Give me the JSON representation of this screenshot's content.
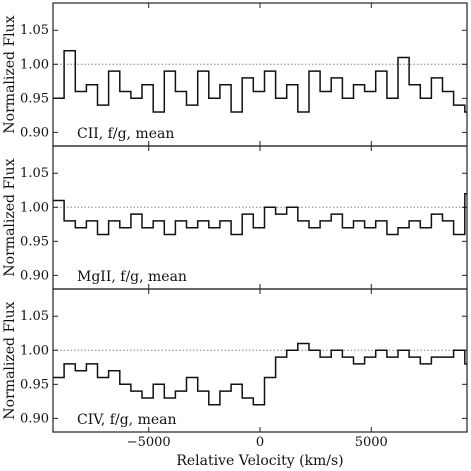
{
  "chart_data": [
    {
      "type": "line",
      "panel_label": "CII, f/g, mean",
      "ylabel": "Normalized Flux",
      "xlabel": "",
      "xlim": [
        -9300,
        9300
      ],
      "ylim": [
        0.88,
        1.09
      ],
      "yticks": [
        0.9,
        0.95,
        1.0,
        1.05
      ],
      "ytick_labels": [
        "0.90",
        "0.95",
        "1.00",
        "1.05"
      ],
      "xticks": [
        -5000,
        0,
        5000
      ],
      "xtick_labels": [],
      "reference_line": 1.0,
      "series": [
        {
          "x": [
            -9300,
            -8800,
            -8300,
            -7800,
            -7300,
            -6800,
            -6300,
            -5800,
            -5300,
            -4800,
            -4300,
            -3800,
            -3300,
            -2800,
            -2300,
            -1800,
            -1300,
            -800,
            -300,
            200,
            700,
            1200,
            1700,
            2200,
            2700,
            3200,
            3700,
            4200,
            4700,
            5200,
            5700,
            6200,
            6700,
            7200,
            7700,
            8200,
            8700,
            9200
          ],
          "y": [
            0.95,
            1.02,
            0.96,
            0.97,
            0.94,
            0.99,
            0.96,
            0.95,
            0.97,
            0.93,
            0.99,
            0.96,
            0.94,
            0.99,
            0.95,
            0.97,
            0.93,
            0.98,
            0.96,
            0.99,
            0.95,
            0.97,
            0.93,
            0.99,
            0.96,
            0.98,
            0.95,
            0.97,
            0.96,
            0.99,
            0.95,
            1.01,
            0.97,
            0.95,
            0.98,
            0.96,
            0.94,
            0.93
          ]
        }
      ]
    },
    {
      "type": "line",
      "panel_label": "MgII, f/g, mean",
      "ylabel": "Normalized Flux",
      "xlabel": "",
      "xlim": [
        -9300,
        9300
      ],
      "ylim": [
        0.88,
        1.09
      ],
      "yticks": [
        0.9,
        0.95,
        1.0,
        1.05
      ],
      "ytick_labels": [
        "0.90",
        "0.95",
        "1.00",
        "1.05"
      ],
      "xticks": [
        -5000,
        0,
        5000
      ],
      "xtick_labels": [],
      "reference_line": 1.0,
      "series": [
        {
          "x": [
            -9300,
            -8800,
            -8300,
            -7800,
            -7300,
            -6800,
            -6300,
            -5800,
            -5300,
            -4800,
            -4300,
            -3800,
            -3300,
            -2800,
            -2300,
            -1800,
            -1300,
            -800,
            -300,
            200,
            700,
            1200,
            1700,
            2200,
            2700,
            3200,
            3700,
            4200,
            4700,
            5200,
            5700,
            6200,
            6700,
            7200,
            7700,
            8200,
            8700,
            9200
          ],
          "y": [
            1.01,
            0.98,
            0.97,
            0.98,
            0.96,
            0.98,
            0.97,
            0.99,
            0.97,
            0.98,
            0.96,
            0.98,
            0.97,
            0.98,
            0.97,
            0.98,
            0.96,
            0.99,
            0.97,
            1.0,
            0.99,
            1.0,
            0.98,
            0.97,
            0.98,
            0.99,
            0.97,
            0.98,
            0.97,
            0.98,
            0.96,
            0.97,
            0.98,
            0.97,
            0.99,
            0.98,
            0.96,
            1.02
          ]
        }
      ]
    },
    {
      "type": "line",
      "panel_label": "CIV, f/g, mean",
      "ylabel": "Normalized Flux",
      "xlabel": "Relative Velocity (km/s)",
      "xlim": [
        -9300,
        9300
      ],
      "ylim": [
        0.88,
        1.09
      ],
      "yticks": [
        0.9,
        0.95,
        1.0,
        1.05
      ],
      "ytick_labels": [
        "0.90",
        "0.95",
        "1.00",
        "1.05"
      ],
      "xticks": [
        -5000,
        0,
        5000
      ],
      "xtick_labels": [
        "−5000",
        "0",
        "5000"
      ],
      "reference_line": 1.0,
      "series": [
        {
          "x": [
            -9300,
            -8800,
            -8300,
            -7800,
            -7300,
            -6800,
            -6300,
            -5800,
            -5300,
            -4800,
            -4300,
            -3800,
            -3300,
            -2800,
            -2300,
            -1800,
            -1300,
            -800,
            -300,
            200,
            700,
            1200,
            1700,
            2200,
            2700,
            3200,
            3700,
            4200,
            4700,
            5200,
            5700,
            6200,
            6700,
            7200,
            7700,
            8200,
            8700,
            9200
          ],
          "y": [
            0.96,
            0.98,
            0.97,
            0.98,
            0.96,
            0.97,
            0.95,
            0.94,
            0.93,
            0.95,
            0.93,
            0.94,
            0.96,
            0.94,
            0.92,
            0.94,
            0.95,
            0.93,
            0.92,
            0.96,
            0.99,
            1.0,
            1.01,
            1.0,
            0.99,
            1.0,
            0.99,
            0.98,
            0.99,
            1.0,
            0.99,
            1.0,
            0.99,
            0.98,
            0.99,
            0.99,
            1.0,
            0.98
          ]
        }
      ]
    }
  ]
}
